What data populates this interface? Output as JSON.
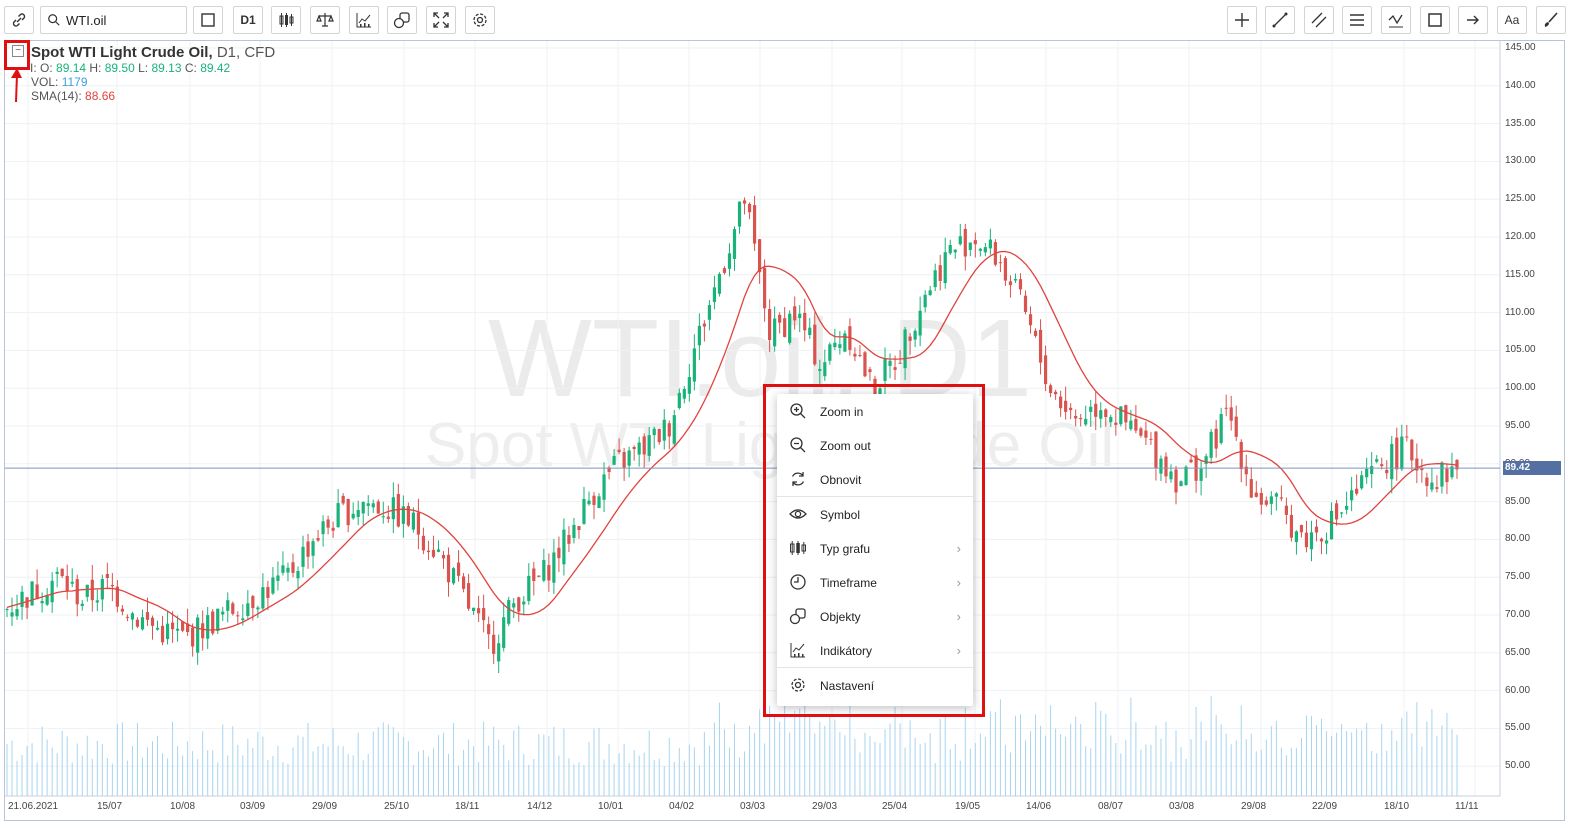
{
  "toolbar": {
    "symbol": "WTI.oil",
    "timeframe": "D1",
    "text_button": "Aa"
  },
  "legend": {
    "title": "Spot WTI Light Crude Oil,",
    "timeframe": "D1,",
    "type": "CFD",
    "ohlc_prefix": "I: O:",
    "open": "89.14",
    "high_label": "H:",
    "high": "89.50",
    "low_label": "L:",
    "low": "89.13",
    "close_label": "C:",
    "close": "89.42",
    "vol_label": "VOL:",
    "vol": "1179",
    "sma_label": "SMA(14):",
    "sma": "88.66",
    "collapse_glyph": "−"
  },
  "watermark": {
    "line1": "WTI.oil, D1",
    "line2": "Spot WTI Light Crude Oil"
  },
  "price_axis": [
    "145.00",
    "140.00",
    "135.00",
    "130.00",
    "125.00",
    "120.00",
    "115.00",
    "110.00",
    "105.00",
    "100.00",
    "95.00",
    "90.00",
    "85.00",
    "80.00",
    "75.00",
    "70.00",
    "65.00",
    "60.00",
    "55.00",
    "50.00"
  ],
  "last_price": "89.42",
  "date_axis": [
    "21.06.2021",
    "15/07",
    "10/08",
    "03/09",
    "29/09",
    "25/10",
    "18/11",
    "14/12",
    "10/01",
    "04/02",
    "03/03",
    "29/03",
    "25/04",
    "19/05",
    "14/06",
    "08/07",
    "03/08",
    "29/08",
    "22/09",
    "18/10",
    "11/11"
  ],
  "colors": {
    "up": "#19b37a",
    "down": "#d9534f",
    "sma": "#e0433e",
    "volume": "#a8d4f0",
    "highlight": "#e01010",
    "last_price_bg": "#5470a3"
  },
  "chart_data": {
    "type": "candlestick",
    "symbol": "WTI.oil",
    "ylim": [
      45,
      147
    ],
    "close_approx": [
      71,
      73,
      75,
      72,
      74,
      70,
      68,
      67,
      69,
      71,
      73,
      75,
      80,
      83,
      85,
      84,
      82,
      78,
      72,
      66,
      72,
      75,
      80,
      86,
      90,
      92,
      95,
      105,
      115,
      125,
      107,
      110,
      103,
      108,
      100,
      104,
      112,
      118,
      120,
      117,
      110,
      100,
      96,
      98,
      95,
      92,
      88,
      90,
      97,
      86,
      84,
      80,
      82,
      86,
      90,
      92,
      88,
      89.42
    ],
    "sma_label": "SMA(14)"
  },
  "context_menu": {
    "items": [
      {
        "label": "Zoom in",
        "icon": "zoom-in-icon",
        "submenu": false
      },
      {
        "label": "Zoom out",
        "icon": "zoom-out-icon",
        "submenu": false
      },
      {
        "label": "Obnovit",
        "icon": "refresh-icon",
        "submenu": false
      },
      {
        "label": "Symbol",
        "icon": "eye-icon",
        "submenu": false
      },
      {
        "label": "Typ grafu",
        "icon": "candles-icon",
        "submenu": true
      },
      {
        "label": "Timeframe",
        "icon": "clock-icon",
        "submenu": true
      },
      {
        "label": "Objekty",
        "icon": "shapes-icon",
        "submenu": true
      },
      {
        "label": "Indikátory",
        "icon": "indicator-icon",
        "submenu": true
      },
      {
        "label": "Nastavení",
        "icon": "gear-icon",
        "submenu": false
      }
    ],
    "submenu_arrow": "›"
  }
}
